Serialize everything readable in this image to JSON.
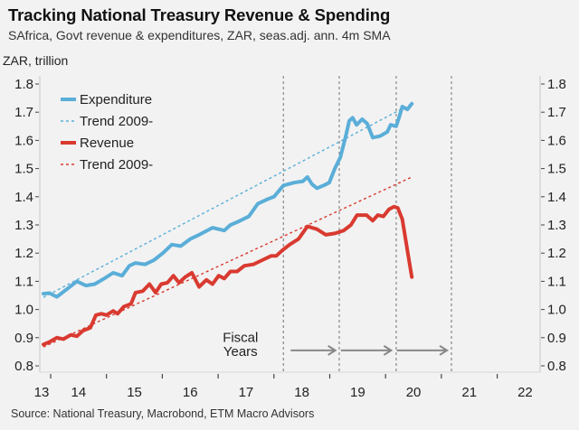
{
  "header": {
    "title": "Tracking National Treasury Revenue & Spending",
    "subtitle": "SAfrica, Govt revenue & expenditures, ZAR, seas.adj. ann. 4m SMA",
    "unit_label": "ZAR, trillion"
  },
  "footer": {
    "source": "Source: National Treasury, Macrobond, ETM Macro Advisors"
  },
  "chart_data": {
    "type": "line",
    "title": "Tracking National Treasury Revenue & Spending",
    "subtitle": "SAfrica, Govt revenue & expenditures, ZAR, seas.adj. ann. 4m SMA",
    "xlabel": "",
    "ylabel": "ZAR, trillion",
    "xlim": [
      2013.8,
      2022.77
    ],
    "ylim": [
      0.78,
      1.82
    ],
    "yticks": [
      0.8,
      0.9,
      1.0,
      1.1,
      1.2,
      1.3,
      1.4,
      1.5,
      1.6,
      1.7,
      1.8
    ],
    "ytick_labels": [
      "0.8",
      "0.9",
      "1.0",
      "1.1",
      "1.2",
      "1.3",
      "1.4",
      "1.5",
      "1.6",
      "1.7",
      "1.8"
    ],
    "xtick_positions": [
      2014,
      2015,
      2016,
      2017,
      2018,
      2019,
      2020,
      2021,
      2022
    ],
    "xtick_labels": [
      {
        "label": "13",
        "x": 2013.4
      },
      {
        "label": "14",
        "x": 2014.5
      },
      {
        "label": "15",
        "x": 2015.5
      },
      {
        "label": "16",
        "x": 2016.5
      },
      {
        "label": "17",
        "x": 2017.5
      },
      {
        "label": "18",
        "x": 2018.5
      },
      {
        "label": "19",
        "x": 2019.5
      },
      {
        "label": "20",
        "x": 2020.5
      },
      {
        "label": "21",
        "x": 2021.5
      },
      {
        "label": "22",
        "x": 2022.5
      }
    ],
    "grid": false,
    "y_axis_both_sides": true,
    "legend": {
      "position": "top-left",
      "entries": [
        {
          "label": "Expenditure",
          "style": "solid",
          "color": "#5aaed8"
        },
        {
          "label": "Trend 2009-",
          "style": "dotted",
          "color": "#5aaed8"
        },
        {
          "label": "Revenue",
          "style": "solid",
          "color": "#d93a30"
        },
        {
          "label": "Trend 2009-",
          "style": "dotted",
          "color": "#d93a30"
        }
      ]
    },
    "series": [
      {
        "name": "Expenditure",
        "color": "#5aaed8",
        "style": "solid",
        "x": [
          2013.87,
          2013.98,
          2014.11,
          2014.31,
          2014.47,
          2014.63,
          2014.79,
          2014.96,
          2015.12,
          2015.28,
          2015.41,
          2015.52,
          2015.69,
          2015.85,
          2016.01,
          2016.17,
          2016.33,
          2016.5,
          2016.66,
          2016.9,
          2017.11,
          2017.22,
          2017.34,
          2017.55,
          2017.71,
          2017.87,
          2018.0,
          2018.17,
          2018.36,
          2018.52,
          2018.6,
          2018.68,
          2018.77,
          2018.89,
          2018.99,
          2019.09,
          2019.19,
          2019.28,
          2019.35,
          2019.41,
          2019.48,
          2019.58,
          2019.67,
          2019.77,
          2019.9,
          2020.03,
          2020.09,
          2020.19,
          2020.24,
          2020.3,
          2020.39,
          2020.47
        ],
        "values": [
          1.056,
          1.058,
          1.045,
          1.075,
          1.1,
          1.085,
          1.09,
          1.11,
          1.13,
          1.12,
          1.155,
          1.165,
          1.16,
          1.175,
          1.2,
          1.23,
          1.225,
          1.25,
          1.265,
          1.29,
          1.28,
          1.3,
          1.31,
          1.33,
          1.375,
          1.39,
          1.4,
          1.44,
          1.45,
          1.455,
          1.47,
          1.445,
          1.43,
          1.44,
          1.45,
          1.5,
          1.54,
          1.61,
          1.67,
          1.68,
          1.655,
          1.675,
          1.66,
          1.61,
          1.615,
          1.63,
          1.655,
          1.65,
          1.68,
          1.72,
          1.71,
          1.73
        ]
      },
      {
        "name": "Expenditure Trend 2009-",
        "color": "#5aaed8",
        "style": "dotted",
        "x": [
          2013.87,
          2020.47
        ],
        "values": [
          1.043,
          1.73
        ]
      },
      {
        "name": "Revenue",
        "color": "#d93a30",
        "style": "solid",
        "x": [
          2013.87,
          2013.98,
          2014.11,
          2014.23,
          2014.36,
          2014.47,
          2014.58,
          2014.71,
          2014.81,
          2014.91,
          2015.0,
          2015.12,
          2015.2,
          2015.31,
          2015.44,
          2015.52,
          2015.65,
          2015.77,
          2015.88,
          2015.98,
          2016.09,
          2016.2,
          2016.3,
          2016.41,
          2016.53,
          2016.66,
          2016.79,
          2016.9,
          2017.01,
          2017.11,
          2017.22,
          2017.34,
          2017.47,
          2017.63,
          2017.79,
          2017.95,
          2018.04,
          2018.15,
          2018.28,
          2018.44,
          2018.6,
          2018.77,
          2018.93,
          2019.09,
          2019.25,
          2019.38,
          2019.49,
          2019.66,
          2019.77,
          2019.86,
          2019.96,
          2020.06,
          2020.15,
          2020.22,
          2020.3,
          2020.39,
          2020.47
        ],
        "values": [
          0.876,
          0.885,
          0.9,
          0.895,
          0.91,
          0.905,
          0.925,
          0.935,
          0.98,
          0.985,
          0.98,
          0.995,
          0.985,
          1.01,
          1.02,
          1.06,
          1.065,
          1.09,
          1.06,
          1.09,
          1.095,
          1.12,
          1.095,
          1.115,
          1.13,
          1.08,
          1.105,
          1.09,
          1.12,
          1.11,
          1.135,
          1.135,
          1.155,
          1.16,
          1.175,
          1.19,
          1.19,
          1.21,
          1.23,
          1.25,
          1.295,
          1.285,
          1.265,
          1.27,
          1.28,
          1.3,
          1.335,
          1.335,
          1.315,
          1.335,
          1.33,
          1.355,
          1.365,
          1.36,
          1.32,
          1.21,
          1.115
        ]
      },
      {
        "name": "Revenue Trend 2009-",
        "color": "#d93a30",
        "style": "dotted",
        "x": [
          2013.87,
          2020.47
        ],
        "values": [
          0.867,
          1.47
        ]
      }
    ],
    "vertical_markers": {
      "label": "fiscal-year-boundary",
      "x": [
        2018.17,
        2019.17,
        2020.19,
        2021.18
      ],
      "style": "dashed",
      "color": "#888888"
    },
    "annotations": [
      {
        "text": "Fiscal",
        "x": 2017.4,
        "y": 0.885
      },
      {
        "text": "Years",
        "x": 2017.4,
        "y": 0.835
      }
    ],
    "arrows": [
      {
        "from": 2018.3,
        "to": 2019.1,
        "y": 0.855
      },
      {
        "from": 2019.2,
        "to": 2020.1,
        "y": 0.855
      },
      {
        "from": 2020.2,
        "to": 2021.1,
        "y": 0.855
      }
    ]
  }
}
